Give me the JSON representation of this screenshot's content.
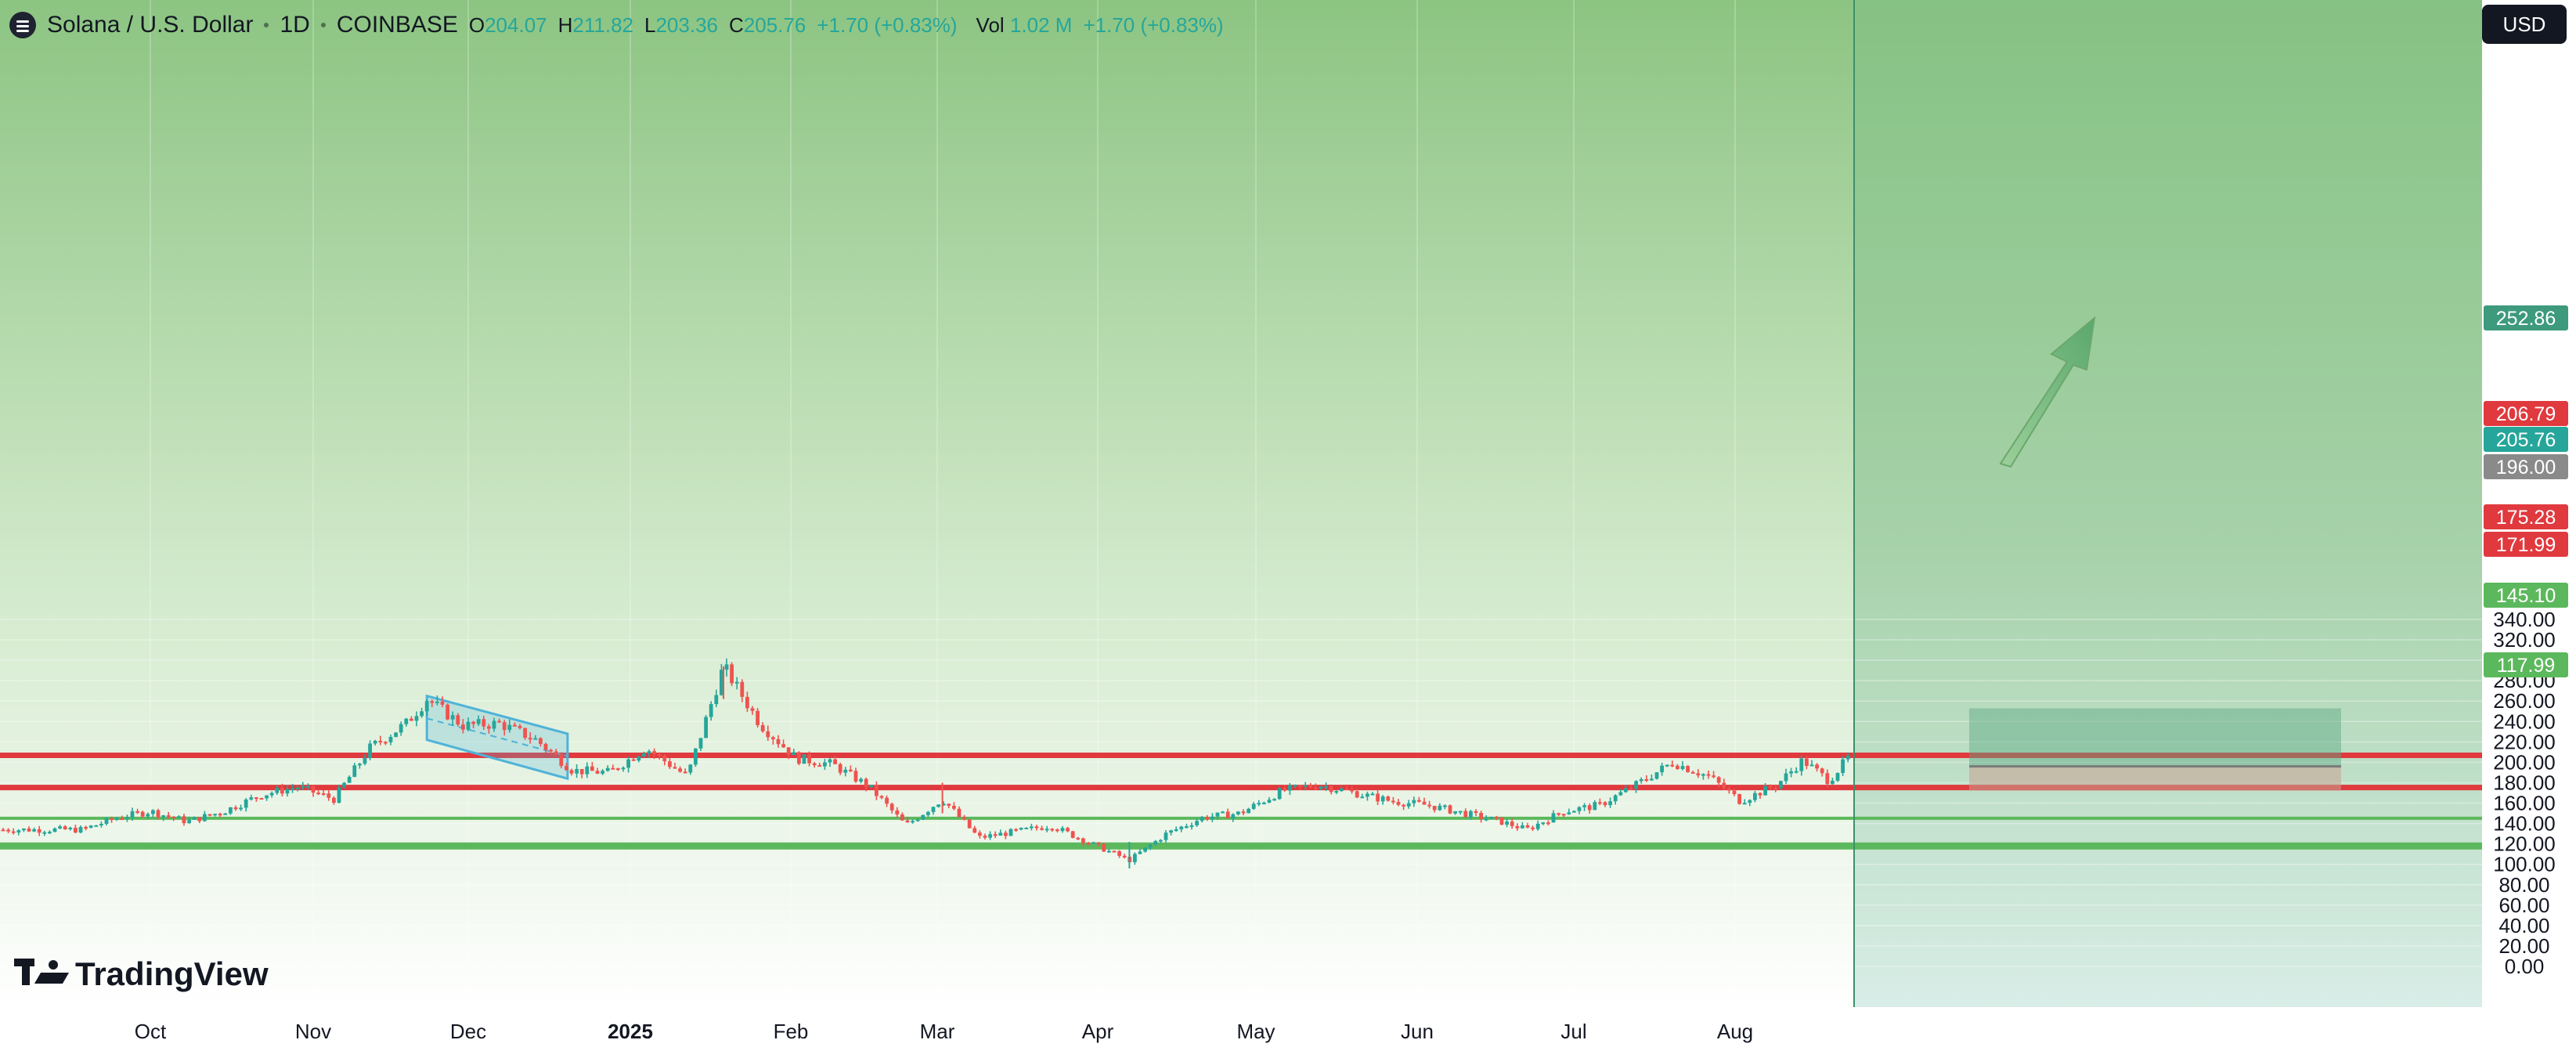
{
  "header": {
    "symbol": "Solana / U.S. Dollar",
    "interval": "1D",
    "exchange": "COINBASE",
    "open_label": "O",
    "open": "204.07",
    "high_label": "H",
    "high": "211.82",
    "low_label": "L",
    "low": "203.36",
    "close_label": "C",
    "close": "205.76",
    "change": "+1.70 (+0.83%)",
    "vol_label": "Vol",
    "vol": "1.02 M",
    "vol_change": "+1.70 (+0.83%)"
  },
  "currency_button": "USD",
  "brand": "TradingView",
  "colors": {
    "resistance": "#e0393e",
    "support": "#5cb85c",
    "up": "#26a69a",
    "down": "#ef5350",
    "channel": "#4fb3d9",
    "last_price_tag": "#26a69a",
    "target_tag": "#3d9a7c"
  },
  "chart_data": {
    "type": "candlestick",
    "x_ticks": [
      "Oct",
      "Nov",
      "Dec",
      "2025",
      "Feb",
      "Mar",
      "Apr",
      "May",
      "Jun",
      "Jul",
      "Aug"
    ],
    "y_ticks": [
      "0.00",
      "20.00",
      "40.00",
      "60.00",
      "80.00",
      "100.00",
      "120.00",
      "140.00",
      "160.00",
      "180.00",
      "200.00",
      "220.00",
      "240.00",
      "260.00",
      "280.00",
      "300.00",
      "320.00",
      "340.00"
    ],
    "ylim": [
      0,
      350
    ],
    "resistance_lines": [
      206.79,
      175.28
    ],
    "support_lines": [
      145.1,
      117.99
    ],
    "price_tags": [
      {
        "label": "252.86",
        "value": 252.86,
        "color": "#3d9a7c"
      },
      {
        "label": "206.79",
        "value": 206.79,
        "color": "#e0393e"
      },
      {
        "label": "205.76",
        "value": 205.76,
        "color": "#26a69a"
      },
      {
        "label": "196.00",
        "value": 196.0,
        "color": "#8a8a8a"
      },
      {
        "label": "175.28",
        "value": 175.28,
        "color": "#e0393e"
      },
      {
        "label": "171.99",
        "value": 171.99,
        "color": "#e0393e"
      },
      {
        "label": "145.10",
        "value": 145.1,
        "color": "#5cb85c"
      },
      {
        "label": "117.99",
        "value": 117.99,
        "color": "#5cb85c"
      }
    ],
    "long_position": {
      "entry": 196.0,
      "target": 252.86,
      "stop": 171.99
    },
    "series": [
      {
        "date": "2024-09-18",
        "close": 134
      },
      {
        "date": "2024-09-25",
        "close": 146
      },
      {
        "date": "2024-10-01",
        "close": 152
      },
      {
        "date": "2024-10-08",
        "close": 142
      },
      {
        "date": "2024-10-15",
        "close": 152
      },
      {
        "date": "2024-10-22",
        "close": 168
      },
      {
        "date": "2024-10-29",
        "close": 176
      },
      {
        "date": "2024-11-05",
        "close": 164
      },
      {
        "date": "2024-11-12",
        "close": 214
      },
      {
        "date": "2024-11-19",
        "close": 238
      },
      {
        "date": "2024-11-23",
        "close": 262
      },
      {
        "date": "2024-11-30",
        "close": 236
      },
      {
        "date": "2024-12-07",
        "close": 238
      },
      {
        "date": "2024-12-14",
        "close": 222
      },
      {
        "date": "2024-12-21",
        "close": 192
      },
      {
        "date": "2024-12-28",
        "close": 190
      },
      {
        "date": "2025-01-04",
        "close": 214
      },
      {
        "date": "2025-01-12",
        "close": 186
      },
      {
        "date": "2025-01-19",
        "close": 294
      },
      {
        "date": "2025-01-26",
        "close": 238
      },
      {
        "date": "2025-02-02",
        "close": 204
      },
      {
        "date": "2025-02-09",
        "close": 198
      },
      {
        "date": "2025-02-16",
        "close": 176
      },
      {
        "date": "2025-02-23",
        "close": 138
      },
      {
        "date": "2025-03-02",
        "close": 164
      },
      {
        "date": "2025-03-09",
        "close": 126
      },
      {
        "date": "2025-03-16",
        "close": 132
      },
      {
        "date": "2025-03-23",
        "close": 138
      },
      {
        "date": "2025-03-30",
        "close": 122
      },
      {
        "date": "2025-04-07",
        "close": 104
      },
      {
        "date": "2025-04-14",
        "close": 130
      },
      {
        "date": "2025-04-21",
        "close": 146
      },
      {
        "date": "2025-04-28",
        "close": 150
      },
      {
        "date": "2025-05-06",
        "close": 172
      },
      {
        "date": "2025-05-13",
        "close": 178
      },
      {
        "date": "2025-05-20",
        "close": 170
      },
      {
        "date": "2025-05-27",
        "close": 162
      },
      {
        "date": "2025-06-03",
        "close": 158
      },
      {
        "date": "2025-06-10",
        "close": 150
      },
      {
        "date": "2025-06-17",
        "close": 142
      },
      {
        "date": "2025-06-22",
        "close": 134
      },
      {
        "date": "2025-06-29",
        "close": 152
      },
      {
        "date": "2025-07-06",
        "close": 158
      },
      {
        "date": "2025-07-13",
        "close": 178
      },
      {
        "date": "2025-07-20",
        "close": 200
      },
      {
        "date": "2025-07-27",
        "close": 186
      },
      {
        "date": "2025-08-02",
        "close": 162
      },
      {
        "date": "2025-08-09",
        "close": 178
      },
      {
        "date": "2025-08-14",
        "close": 202
      },
      {
        "date": "2025-08-19",
        "close": 182
      },
      {
        "date": "2025-08-23",
        "close": 205.76
      }
    ]
  }
}
